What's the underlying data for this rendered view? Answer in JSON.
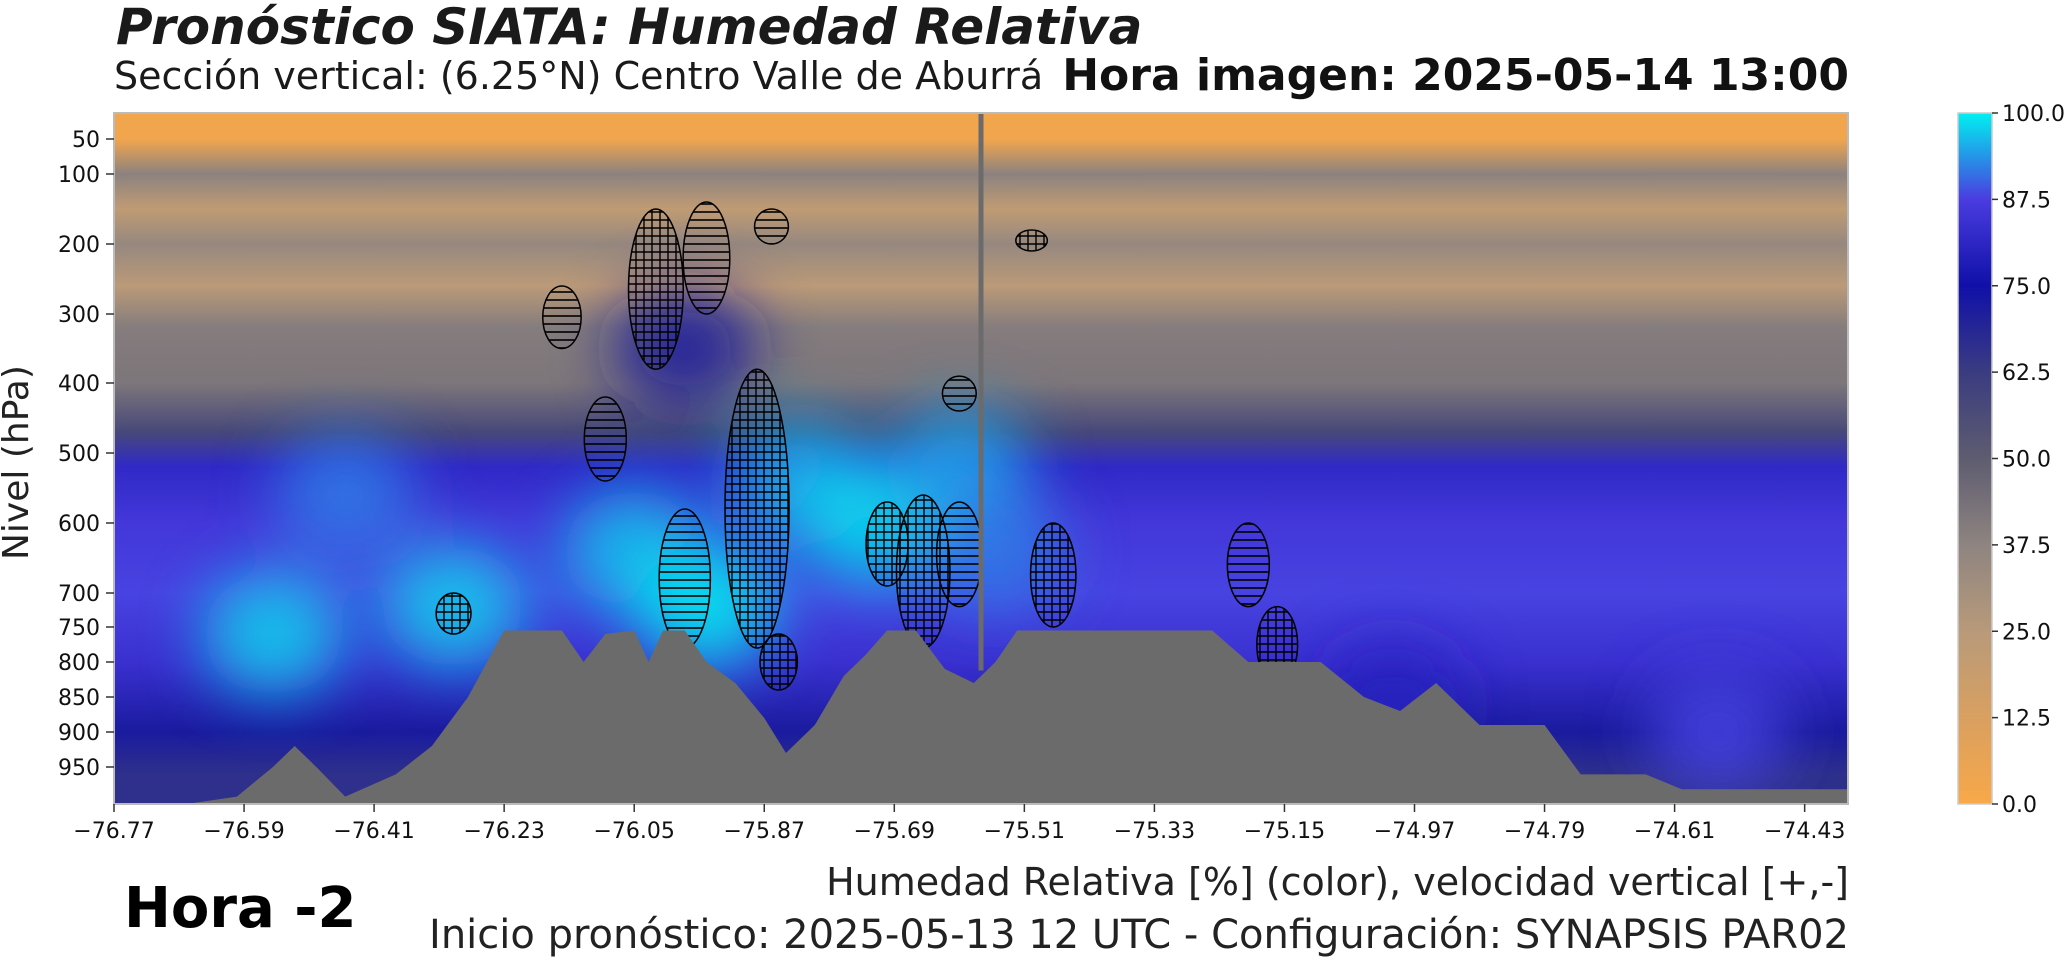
{
  "header": {
    "title": "Pronóstico SIATA: Humedad Relativa",
    "subtitle": "Sección vertical: (6.25°N) Centro Valle de Aburrá",
    "image_time": "Hora imagen: 2025-05-14 13:00"
  },
  "footer": {
    "hour_offset": "Hora -2",
    "caption": "Humedad Relativa [%] (color), velocidad vertical [+,-]",
    "init_info": "Inicio pronóstico: 2025-05-13 12 UTC - Configuración: SYNAPSIS PAR02"
  },
  "chart_data": {
    "type": "heatmap",
    "title": "Pronóstico SIATA: Humedad Relativa",
    "xlabel": "Humedad Relativa [%] (color), velocidad vertical [+,-]",
    "ylabel": "Nivel (hPa)",
    "x_ticks": [
      -76.77,
      -76.59,
      -76.41,
      -76.23,
      -76.05,
      -75.87,
      -75.69,
      -75.51,
      -75.33,
      -75.15,
      -74.97,
      -74.79,
      -74.61,
      -74.43
    ],
    "x_tick_labels": [
      "−76.77",
      "−76.59",
      "−76.41",
      "−76.23",
      "−76.05",
      "−75.87",
      "−75.69",
      "−75.51",
      "−75.33",
      "−75.15",
      "−74.97",
      "−74.79",
      "−74.61",
      "−74.43"
    ],
    "xlim": [
      -76.77,
      -74.37
    ],
    "y_ticks": [
      50,
      100,
      200,
      300,
      400,
      500,
      600,
      700,
      750,
      800,
      850,
      900,
      950
    ],
    "ylim": [
      1000,
      10
    ],
    "colorbar": {
      "ticks": [
        0.0,
        12.5,
        25.0,
        37.5,
        50.0,
        62.5,
        75.0,
        87.5,
        100.0
      ],
      "tick_labels": [
        "0.0",
        "12.5",
        "25.0",
        "37.5",
        "50.0",
        "62.5",
        "75.0",
        "87.5",
        "100.0"
      ],
      "colors": [
        "#f8a848",
        "#d9a060",
        "#b89a7a",
        "#8e8480",
        "#5e5c70",
        "#3a3c80",
        "#1010a8",
        "#4a3ce0",
        "#00f0f0"
      ]
    },
    "rh_profile": [
      {
        "p": 50,
        "rh": 3
      },
      {
        "p": 100,
        "rh": 38
      },
      {
        "p": 150,
        "rh": 22
      },
      {
        "p": 200,
        "rh": 35
      },
      {
        "p": 260,
        "rh": 24
      },
      {
        "p": 320,
        "rh": 40
      },
      {
        "p": 400,
        "rh": 42
      },
      {
        "p": 470,
        "rh": 58
      },
      {
        "p": 520,
        "rh": 82
      },
      {
        "p": 600,
        "rh": 86
      },
      {
        "p": 700,
        "rh": 88
      },
      {
        "p": 800,
        "rh": 84
      },
      {
        "p": 900,
        "rh": 72
      },
      {
        "p": 960,
        "rh": 66
      }
    ],
    "moist_regions": [
      {
        "lon": -76.45,
        "p": 560,
        "rh": 92
      },
      {
        "lon": -76.55,
        "p": 760,
        "rh": 98
      },
      {
        "lon": -76.3,
        "p": 720,
        "rh": 98
      },
      {
        "lon": -76.05,
        "p": 640,
        "rh": 97
      },
      {
        "lon": -75.95,
        "p": 720,
        "rh": 100
      },
      {
        "lon": -75.82,
        "p": 540,
        "rh": 96
      },
      {
        "lon": -75.72,
        "p": 600,
        "rh": 99
      },
      {
        "lon": -75.6,
        "p": 520,
        "rh": 95
      },
      {
        "lon": -75.55,
        "p": 640,
        "rh": 92
      },
      {
        "lon": -75.98,
        "p": 350,
        "rh": 72
      },
      {
        "lon": -74.55,
        "p": 900,
        "rh": 88
      },
      {
        "lon": -75.0,
        "p": 860,
        "rh": 80
      }
    ],
    "terrain_profile": [
      {
        "lon": -76.77,
        "p": 1000
      },
      {
        "lon": -76.67,
        "p": 1000
      },
      {
        "lon": -76.6,
        "p": 990
      },
      {
        "lon": -76.55,
        "p": 950
      },
      {
        "lon": -76.52,
        "p": 920
      },
      {
        "lon": -76.49,
        "p": 950
      },
      {
        "lon": -76.45,
        "p": 990
      },
      {
        "lon": -76.38,
        "p": 960
      },
      {
        "lon": -76.33,
        "p": 920
      },
      {
        "lon": -76.28,
        "p": 850
      },
      {
        "lon": -76.23,
        "p": 755
      },
      {
        "lon": -76.15,
        "p": 755
      },
      {
        "lon": -76.12,
        "p": 800
      },
      {
        "lon": -76.09,
        "p": 760
      },
      {
        "lon": -76.05,
        "p": 755
      },
      {
        "lon": -76.03,
        "p": 800
      },
      {
        "lon": -76.01,
        "p": 755
      },
      {
        "lon": -75.98,
        "p": 755
      },
      {
        "lon": -75.95,
        "p": 800
      },
      {
        "lon": -75.91,
        "p": 830
      },
      {
        "lon": -75.87,
        "p": 880
      },
      {
        "lon": -75.84,
        "p": 930
      },
      {
        "lon": -75.8,
        "p": 890
      },
      {
        "lon": -75.76,
        "p": 820
      },
      {
        "lon": -75.73,
        "p": 790
      },
      {
        "lon": -75.7,
        "p": 755
      },
      {
        "lon": -75.66,
        "p": 755
      },
      {
        "lon": -75.62,
        "p": 810
      },
      {
        "lon": -75.58,
        "p": 830
      },
      {
        "lon": -75.55,
        "p": 800
      },
      {
        "lon": -75.52,
        "p": 755
      },
      {
        "lon": -75.25,
        "p": 755
      },
      {
        "lon": -75.2,
        "p": 800
      },
      {
        "lon": -75.1,
        "p": 800
      },
      {
        "lon": -75.04,
        "p": 850
      },
      {
        "lon": -74.99,
        "p": 870
      },
      {
        "lon": -74.94,
        "p": 830
      },
      {
        "lon": -74.88,
        "p": 890
      },
      {
        "lon": -74.79,
        "p": 890
      },
      {
        "lon": -74.74,
        "p": 960
      },
      {
        "lon": -74.65,
        "p": 960
      },
      {
        "lon": -74.6,
        "p": 980
      },
      {
        "lon": -74.37,
        "p": 980
      }
    ],
    "current_position_line": {
      "lon": -75.57
    },
    "vertical_velocity_hatch": [
      {
        "kind": "+",
        "lon": -76.02,
        "p_top": 150,
        "p_bottom": 380
      },
      {
        "kind": "-",
        "lon": -75.95,
        "p_top": 140,
        "p_bottom": 300
      },
      {
        "kind": "-",
        "lon": -76.15,
        "p_top": 260,
        "p_bottom": 350
      },
      {
        "kind": "-",
        "lon": -75.86,
        "p_top": 150,
        "p_bottom": 200
      },
      {
        "kind": "+",
        "lon": -75.88,
        "p_top": 380,
        "p_bottom": 780
      },
      {
        "kind": "-",
        "lon": -75.98,
        "p_top": 580,
        "p_bottom": 780
      },
      {
        "kind": "+",
        "lon": -75.85,
        "p_top": 760,
        "p_bottom": 840
      },
      {
        "kind": "+",
        "lon": -75.7,
        "p_top": 570,
        "p_bottom": 690
      },
      {
        "kind": "+",
        "lon": -75.65,
        "p_top": 560,
        "p_bottom": 780
      },
      {
        "kind": "-",
        "lon": -75.6,
        "p_top": 570,
        "p_bottom": 720
      },
      {
        "kind": "+",
        "lon": -75.47,
        "p_top": 600,
        "p_bottom": 750
      },
      {
        "kind": "-",
        "lon": -75.2,
        "p_top": 600,
        "p_bottom": 720
      },
      {
        "kind": "+",
        "lon": -75.16,
        "p_top": 720,
        "p_bottom": 830
      },
      {
        "kind": "+",
        "lon": -76.3,
        "p_top": 700,
        "p_bottom": 760
      },
      {
        "kind": "-",
        "lon": -76.09,
        "p_top": 420,
        "p_bottom": 540
      },
      {
        "kind": "-",
        "lon": -75.6,
        "p_top": 390,
        "p_bottom": 440
      },
      {
        "kind": "+",
        "lon": -75.5,
        "p_top": 180,
        "p_bottom": 210
      }
    ]
  }
}
